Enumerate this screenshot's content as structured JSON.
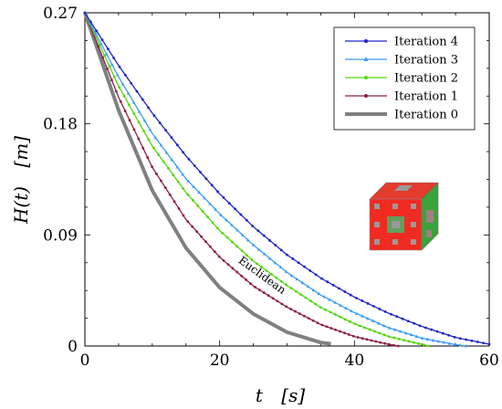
{
  "chart_data": {
    "type": "line",
    "title": "",
    "xlabel_var": "t",
    "xlabel_unit": "[s]",
    "ylabel_var": "H(t)",
    "ylabel_unit": "[m]",
    "xlim": [
      0,
      60
    ],
    "ylim": [
      0,
      0.27
    ],
    "xticks": [
      0,
      20,
      40,
      60
    ],
    "xtick_labels": [
      "0",
      "20",
      "40",
      "60"
    ],
    "yticks": [
      0,
      0.09,
      0.18,
      0.27
    ],
    "ytick_labels": [
      "0",
      "0.09",
      "0.18",
      "0.27"
    ],
    "grid": false,
    "legend_position": "top-right",
    "annotation": {
      "text": "Euclidean",
      "x": 26,
      "y": 0.055,
      "angle_deg": -36
    },
    "inset_image": "menger-sponge-icon",
    "series": [
      {
        "name": "Iteration 4",
        "color": "#1f24c4",
        "marker": "dot",
        "x": [
          0,
          5,
          10,
          15,
          20,
          25,
          30,
          35,
          40,
          45,
          50,
          55,
          60
        ],
        "y": [
          0.27,
          0.2273,
          0.1887,
          0.154,
          0.1233,
          0.0966,
          0.0739,
          0.0551,
          0.0396,
          0.0267,
          0.0158,
          0.0069,
          0.0015
        ]
      },
      {
        "name": "Iteration 3",
        "color": "#3b9cf5",
        "marker": "triangle",
        "x": [
          0,
          5,
          10,
          15,
          20,
          25,
          30,
          35,
          40,
          45,
          50,
          55,
          56.5
        ],
        "y": [
          0.27,
          0.218,
          0.1723,
          0.1355,
          0.1071,
          0.0818,
          0.0596,
          0.0413,
          0.027,
          0.015,
          0.0064,
          0.0011,
          0
        ]
      },
      {
        "name": "Iteration 2",
        "color": "#55d60f",
        "marker": "dot",
        "x": [
          0,
          5,
          10,
          15,
          20,
          25,
          30,
          35,
          40,
          45,
          50,
          51
        ],
        "y": [
          0.27,
          0.2105,
          0.162,
          0.1244,
          0.0935,
          0.0688,
          0.049,
          0.0312,
          0.018,
          0.0078,
          0.0013,
          0
        ]
      },
      {
        "name": "Iteration 1",
        "color": "#8b1f48",
        "marker": "dot",
        "x": [
          0,
          5,
          10,
          15,
          20,
          25,
          30,
          35,
          40,
          45,
          46.5
        ],
        "y": [
          0.27,
          0.2016,
          0.1448,
          0.1025,
          0.072,
          0.0486,
          0.0315,
          0.0174,
          0.0077,
          0.0014,
          0
        ]
      },
      {
        "name": "Iteration 0",
        "color": "#808080",
        "marker": "none",
        "x": [
          0,
          5,
          10,
          15,
          20,
          25,
          30,
          35,
          36.5
        ],
        "y": [
          0.27,
          0.191,
          0.126,
          0.0795,
          0.0474,
          0.026,
          0.0112,
          0.0028,
          0.0018
        ]
      }
    ]
  }
}
